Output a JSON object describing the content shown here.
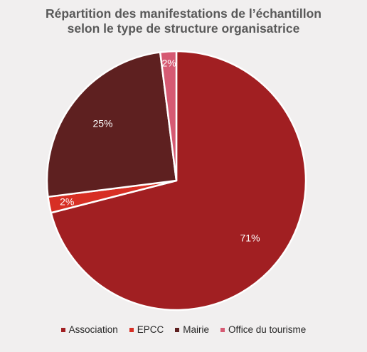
{
  "chart_data": {
    "type": "pie",
    "title_lines": [
      "Répartition des manifestations de l’échantillon",
      "selon le type de structure organisatrice"
    ],
    "slices": [
      {
        "name": "Association",
        "value": 71,
        "label": "71%",
        "color": "#a11f22",
        "label_color": "#ffffff"
      },
      {
        "name": "EPCC",
        "value": 2,
        "label": "2%",
        "color": "#d72f24",
        "label_color": "#ffffff"
      },
      {
        "name": "Mairie",
        "value": 25,
        "label": "25%",
        "color": "#5e2020",
        "label_color": "#ffffff"
      },
      {
        "name": "Office du tourisme",
        "value": 2,
        "label": "2%",
        "color": "#d65a73",
        "label_color": "#ffffff"
      }
    ],
    "legend_position": "bottom"
  }
}
